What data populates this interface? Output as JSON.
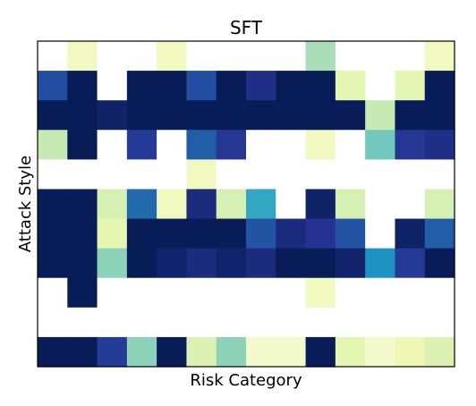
{
  "chart_data": {
    "type": "heatmap",
    "title": "SFT",
    "xlabel": "Risk Category",
    "ylabel": "Attack Style",
    "colormap": "YlGnBu",
    "value_range": [
      0,
      1
    ],
    "n_rows": 11,
    "n_cols": 14,
    "values": [
      [
        0.0,
        0.1,
        0.0,
        0.0,
        0.1,
        0.0,
        0.0,
        0.0,
        0.0,
        0.3,
        0.0,
        0.0,
        0.0,
        0.1
      ],
      [
        0.8,
        1.0,
        0.0,
        1.0,
        1.0,
        0.8,
        1.0,
        0.9,
        1.0,
        1.0,
        0.15,
        0.0,
        0.15,
        1.0
      ],
      [
        1.0,
        1.0,
        0.97,
        1.0,
        1.0,
        1.0,
        1.0,
        1.0,
        1.0,
        1.0,
        1.0,
        0.25,
        1.0,
        1.0
      ],
      [
        0.25,
        1.0,
        0.0,
        0.85,
        0.0,
        0.75,
        0.87,
        0.0,
        0.0,
        0.1,
        0.0,
        0.4,
        0.87,
        0.9
      ],
      [
        0.0,
        0.0,
        0.0,
        0.0,
        0.0,
        0.1,
        0.0,
        0.0,
        0.0,
        0.0,
        0.0,
        0.0,
        0.0,
        0.0
      ],
      [
        1.0,
        1.0,
        0.2,
        0.72,
        0.1,
        0.92,
        0.2,
        0.55,
        0.0,
        0.97,
        0.2,
        0.0,
        0.0,
        0.2
      ],
      [
        1.0,
        1.0,
        0.15,
        1.0,
        1.0,
        1.0,
        1.0,
        0.78,
        0.92,
        0.88,
        0.78,
        0.0,
        0.97,
        0.75
      ],
      [
        1.0,
        1.0,
        0.35,
        1.0,
        0.96,
        0.92,
        0.96,
        0.92,
        1.0,
        1.0,
        0.96,
        0.62,
        0.86,
        1.0
      ],
      [
        0.0,
        1.0,
        0.0,
        0.0,
        0.0,
        0.0,
        0.0,
        0.0,
        0.0,
        0.1,
        0.0,
        0.0,
        0.0,
        0.0
      ],
      [
        0.0,
        0.0,
        0.0,
        0.0,
        0.0,
        0.0,
        0.0,
        0.0,
        0.0,
        0.0,
        0.0,
        0.0,
        0.0,
        0.0
      ],
      [
        1.0,
        1.0,
        0.85,
        0.35,
        1.0,
        0.18,
        0.35,
        0.08,
        0.08,
        1.0,
        0.15,
        0.08,
        0.12,
        0.18
      ]
    ]
  }
}
